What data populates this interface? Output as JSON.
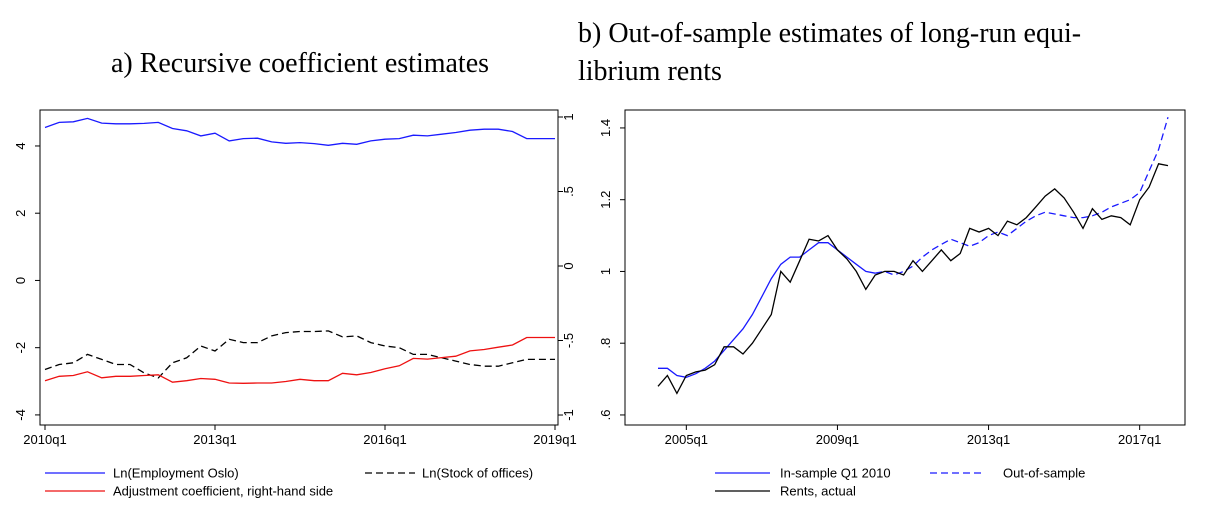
{
  "chart_data": [
    {
      "type": "line",
      "title": "a) Recursive coefficient estimates",
      "categories": [
        "2010q1",
        null,
        null,
        null,
        null,
        null,
        null,
        null,
        null,
        null,
        null,
        null,
        "2013q1",
        null,
        null,
        null,
        null,
        null,
        null,
        null,
        null,
        null,
        null,
        null,
        "2016q1",
        null,
        null,
        null,
        null,
        null,
        null,
        null,
        null,
        null,
        null,
        null,
        "2019q1"
      ],
      "ylim": [
        -4.3,
        5.07
      ],
      "yticks": [
        -4,
        -2,
        0,
        2,
        4
      ],
      "y2lim": [
        -1.067,
        1.047
      ],
      "y2ticks": [
        {
          "value": -1,
          "label": "-1"
        },
        {
          "value": -0.5,
          "label": "-.5"
        },
        {
          "value": 0,
          "label": "0"
        },
        {
          "value": 0.5,
          "label": ".5"
        },
        {
          "value": 1,
          "label": "1"
        }
      ],
      "series": [
        {
          "name": "Ln(Employment Oslo)",
          "color": "#1a1aff",
          "style": "solid",
          "values": [
            4.55,
            4.7,
            4.72,
            4.82,
            4.68,
            4.66,
            4.66,
            4.67,
            4.7,
            4.52,
            4.45,
            4.3,
            4.38,
            4.15,
            4.22,
            4.23,
            4.12,
            4.08,
            4.1,
            4.07,
            4.02,
            4.08,
            4.05,
            4.15,
            4.2,
            4.22,
            4.32,
            4.3,
            4.35,
            4.4,
            4.47,
            4.5,
            4.5,
            4.43,
            4.22,
            4.22,
            4.22
          ]
        },
        {
          "name": "Ln(Stock of offices)",
          "color": "#000000",
          "style": "dashed",
          "values": [
            -2.65,
            -2.5,
            -2.45,
            -2.2,
            -2.35,
            -2.5,
            -2.5,
            -2.75,
            -2.9,
            -2.45,
            -2.3,
            -1.95,
            -2.1,
            -1.75,
            -1.85,
            -1.85,
            -1.65,
            -1.55,
            -1.52,
            -1.52,
            -1.5,
            -1.68,
            -1.65,
            -1.85,
            -1.95,
            -2.0,
            -2.2,
            -2.2,
            -2.3,
            -2.4,
            -2.5,
            -2.55,
            -2.55,
            -2.45,
            -2.35,
            -2.35,
            -2.35
          ]
        },
        {
          "name": "Adjustment coefficient, right-hand side",
          "color": "#ee1111",
          "style": "solid",
          "axis": "y2",
          "values": [
            -0.77,
            -0.74,
            -0.735,
            -0.71,
            -0.75,
            -0.74,
            -0.74,
            -0.735,
            -0.73,
            -0.78,
            -0.77,
            -0.755,
            -0.76,
            -0.785,
            -0.787,
            -0.785,
            -0.785,
            -0.775,
            -0.76,
            -0.77,
            -0.77,
            -0.72,
            -0.73,
            -0.715,
            -0.69,
            -0.67,
            -0.62,
            -0.625,
            -0.615,
            -0.605,
            -0.57,
            -0.56,
            -0.545,
            -0.53,
            -0.48,
            -0.48,
            -0.48
          ]
        }
      ]
    },
    {
      "type": "line",
      "title": [
        "b) Out-of-sample estimates of long-run equi-",
        "librium rents"
      ],
      "categories": [
        null,
        null,
        null,
        "2005q1",
        null,
        null,
        null,
        null,
        null,
        null,
        null,
        null,
        null,
        null,
        null,
        null,
        null,
        null,
        null,
        "2009q1",
        null,
        null,
        null,
        null,
        null,
        null,
        null,
        null,
        null,
        null,
        null,
        null,
        null,
        null,
        null,
        "2013q1",
        null,
        null,
        null,
        null,
        null,
        null,
        null,
        null,
        null,
        null,
        null,
        null,
        null,
        null,
        null,
        "2017q1",
        null,
        null,
        null
      ],
      "ylim": [
        0.572,
        1.45
      ],
      "yticks": [
        {
          "value": 0.6,
          "label": ".6"
        },
        {
          "value": 0.8,
          "label": ".8"
        },
        1,
        1.2,
        1.4
      ],
      "series": [
        {
          "name": "In-sample Q1 2010",
          "color": "#1a1aff",
          "style": "solid",
          "values": [
            0.73,
            0.73,
            0.71,
            0.705,
            0.715,
            0.73,
            0.75,
            0.78,
            0.81,
            0.84,
            0.88,
            0.93,
            0.98,
            1.02,
            1.04,
            1.04,
            1.06,
            1.08,
            1.08,
            1.06,
            1.04,
            1.02,
            1.0,
            0.995,
            null,
            null,
            null,
            null,
            null,
            null,
            null,
            null,
            null,
            null,
            null,
            null,
            null,
            null,
            null,
            null,
            null,
            null,
            null,
            null,
            null,
            null,
            null,
            null,
            null,
            null,
            null,
            null,
            null,
            null,
            null
          ]
        },
        {
          "name": "Out-of-sample",
          "color": "#1a1aff",
          "style": "dashed",
          "values": [
            null,
            null,
            null,
            null,
            null,
            null,
            null,
            null,
            null,
            null,
            null,
            null,
            null,
            null,
            null,
            null,
            null,
            null,
            null,
            null,
            null,
            null,
            null,
            0.995,
            1.0,
            0.99,
            1.0,
            1.015,
            1.04,
            1.06,
            1.075,
            1.09,
            1.08,
            1.07,
            1.08,
            1.1,
            1.11,
            1.1,
            1.12,
            1.14,
            1.155,
            1.165,
            1.16,
            1.155,
            1.15,
            1.15,
            1.155,
            1.165,
            1.18,
            1.19,
            1.2,
            1.22,
            1.28,
            1.34,
            1.43
          ]
        },
        {
          "name": "Rents, actual",
          "color": "#000000",
          "style": "solid",
          "values": [
            0.68,
            0.71,
            0.66,
            0.71,
            0.72,
            0.725,
            0.74,
            0.79,
            0.79,
            0.77,
            0.8,
            0.84,
            0.88,
            1.0,
            0.97,
            1.03,
            1.09,
            1.085,
            1.1,
            1.06,
            1.035,
            1.0,
            0.95,
            0.99,
            1.0,
            1.0,
            0.99,
            1.03,
            1.0,
            1.03,
            1.06,
            1.03,
            1.05,
            1.12,
            1.11,
            1.12,
            1.1,
            1.14,
            1.13,
            1.15,
            1.18,
            1.21,
            1.23,
            1.205,
            1.165,
            1.12,
            1.175,
            1.145,
            1.155,
            1.15,
            1.13,
            1.2,
            1.235,
            1.3,
            1.295
          ]
        }
      ]
    }
  ]
}
